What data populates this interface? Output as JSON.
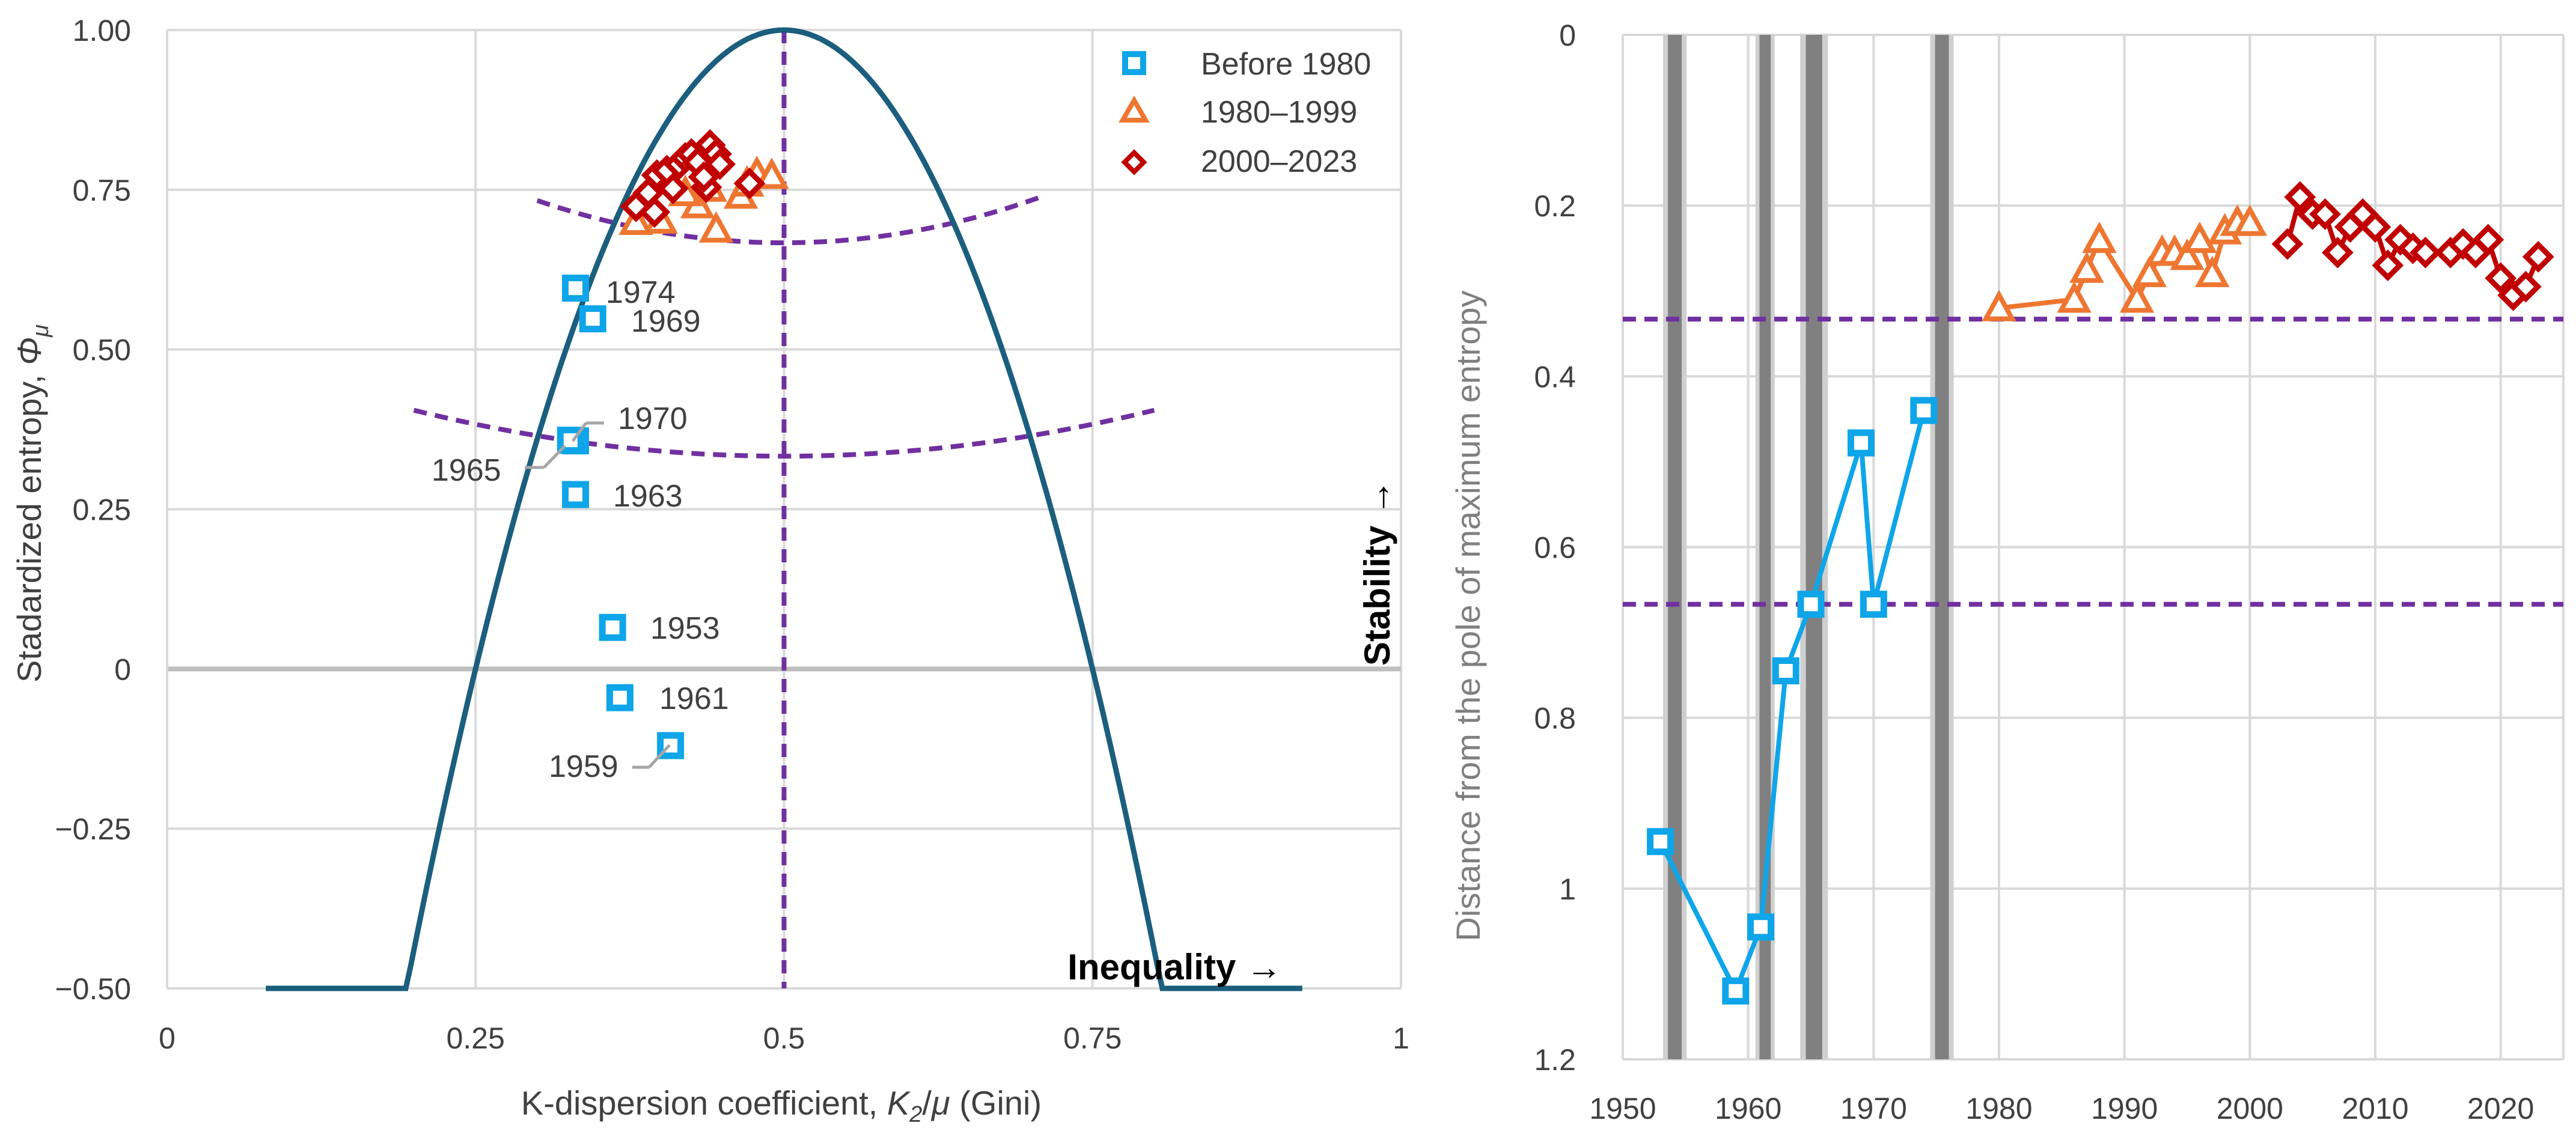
{
  "colors": {
    "before_1980": "#0EA5E9",
    "y1980_1999": "#EE7631",
    "y2000_2023": "#C00000",
    "parabola": "#1B5E7E",
    "dashed": "#7030A0",
    "grid": "#D9D9D9",
    "zero_line": "#BFBFBF",
    "recession_band": "#808080"
  },
  "chart_data": [
    {
      "type": "scatter",
      "title": "",
      "xlabel": "K-dispersion coefficient, K₂/μ (Gini)",
      "xlabel_parts": {
        "pre": "K-dispersion coefficient, ",
        "k": "K",
        "sub": "2",
        "mid": "/",
        "mu": "μ",
        "post": " (Gini)"
      },
      "ylabel": "Stadardized entropy, Φμ",
      "ylabel_parts": {
        "pre": "Stadardized entropy, ",
        "phi": "Φ",
        "sub": "μ"
      },
      "xlim": [
        0,
        1
      ],
      "ylim": [
        -0.5,
        1.0
      ],
      "xticks": [
        0,
        0.25,
        0.5,
        0.75,
        1
      ],
      "xtick_labels": [
        "0",
        "0.25",
        "0.5",
        "0.75",
        "1"
      ],
      "yticks": [
        -0.5,
        -0.25,
        0,
        0.25,
        0.5,
        0.75,
        1.0
      ],
      "ytick_labels": [
        "−0.50",
        "−0.25",
        "0",
        "0.25",
        "0.50",
        "0.75",
        "1.00"
      ],
      "grid": true,
      "legend_position": "top-right",
      "legend": [
        "Before 1980",
        "1980–1999",
        "2000–2023"
      ],
      "curve": {
        "type": "parabola",
        "formula": "1 - 16*(x-0.5)^2",
        "x_range": [
          0.08,
          0.92
        ]
      },
      "vertical_dashed_x": 0.5,
      "dashed_arcs": [
        {
          "x_range": [
            0.3,
            0.71
          ],
          "y_center": 0.667,
          "y_ends": [
            0.74,
            0.74
          ]
        },
        {
          "x_range": [
            0.2,
            0.8
          ],
          "y_center": 0.333,
          "y_ends": [
            0.405,
            0.405
          ]
        }
      ],
      "series": [
        {
          "name": "Before 1980",
          "marker": "square",
          "points": [
            {
              "x": 0.331,
              "y": 0.596,
              "label": "1974"
            },
            {
              "x": 0.345,
              "y": 0.548,
              "label": "1969"
            },
            {
              "x": 0.331,
              "y": 0.357,
              "label": "1970"
            },
            {
              "x": 0.327,
              "y": 0.358,
              "label": "1965"
            },
            {
              "x": 0.331,
              "y": 0.273,
              "label": "1963"
            },
            {
              "x": 0.361,
              "y": 0.065,
              "label": "1953"
            },
            {
              "x": 0.367,
              "y": -0.045,
              "label": "1961"
            },
            {
              "x": 0.408,
              "y": -0.12,
              "label": "1959"
            }
          ]
        },
        {
          "name": "1980–1999",
          "marker": "triangle",
          "points": [
            {
              "x": 0.38,
              "y": 0.7
            },
            {
              "x": 0.4,
              "y": 0.702
            },
            {
              "x": 0.43,
              "y": 0.726
            },
            {
              "x": 0.445,
              "y": 0.688
            },
            {
              "x": 0.465,
              "y": 0.741
            },
            {
              "x": 0.47,
              "y": 0.76
            },
            {
              "x": 0.478,
              "y": 0.775
            },
            {
              "x": 0.49,
              "y": 0.772
            },
            {
              "x": 0.42,
              "y": 0.745
            },
            {
              "x": 0.44,
              "y": 0.752
            }
          ]
        },
        {
          "name": "2000–2023",
          "marker": "diamond",
          "points": [
            {
              "x": 0.38,
              "y": 0.724
            },
            {
              "x": 0.39,
              "y": 0.745
            },
            {
              "x": 0.395,
              "y": 0.715
            },
            {
              "x": 0.397,
              "y": 0.773
            },
            {
              "x": 0.405,
              "y": 0.78
            },
            {
              "x": 0.41,
              "y": 0.752
            },
            {
              "x": 0.415,
              "y": 0.79
            },
            {
              "x": 0.42,
              "y": 0.8
            },
            {
              "x": 0.425,
              "y": 0.806
            },
            {
              "x": 0.43,
              "y": 0.793
            },
            {
              "x": 0.437,
              "y": 0.754
            },
            {
              "x": 0.44,
              "y": 0.82
            },
            {
              "x": 0.445,
              "y": 0.806
            },
            {
              "x": 0.448,
              "y": 0.79
            },
            {
              "x": 0.472,
              "y": 0.76
            },
            {
              "x": 0.435,
              "y": 0.77
            }
          ]
        }
      ],
      "annotations": [
        "Stability →",
        "Inequality →"
      ]
    },
    {
      "type": "line",
      "title": "",
      "xlabel": "",
      "ylabel": "Distance from the pole of maximum entropy",
      "xlim": [
        1950,
        2025
      ],
      "ylim": [
        0,
        1.2
      ],
      "y_inverted": true,
      "xticks": [
        1950,
        1960,
        1970,
        1980,
        1990,
        2000,
        2010,
        2020
      ],
      "xtick_labels": [
        "1950",
        "1960",
        "1970",
        "1980",
        "1990",
        "2000",
        "2010",
        "2020"
      ],
      "yticks": [
        0,
        0.2,
        0.4,
        0.6,
        0.8,
        1.0,
        1.2
      ],
      "ytick_labels": [
        "0",
        "0.2",
        "0.4",
        "0.6",
        "0.8",
        "1",
        "1.2"
      ],
      "grid": true,
      "horizontal_dashed_y": [
        0.333,
        0.667
      ],
      "recession_bands": [
        {
          "start": 1953.6,
          "end": 1954.7
        },
        {
          "start": 1960.9,
          "end": 1961.8
        },
        {
          "start": 1964.6,
          "end": 1965.9
        },
        {
          "start": 1974.9,
          "end": 1976.0
        }
      ],
      "series": [
        {
          "name": "Before 1980",
          "marker": "square",
          "points": [
            {
              "x": 1953,
              "y": 0.945
            },
            {
              "x": 1959,
              "y": 1.12
            },
            {
              "x": 1961,
              "y": 1.045
            },
            {
              "x": 1963,
              "y": 0.745
            },
            {
              "x": 1965,
              "y": 0.667
            },
            {
              "x": 1969,
              "y": 0.478
            },
            {
              "x": 1970,
              "y": 0.667
            },
            {
              "x": 1974,
              "y": 0.44
            }
          ]
        },
        {
          "name": "1980–1999",
          "marker": "triangle",
          "points": [
            {
              "x": 1980,
              "y": 0.32
            },
            {
              "x": 1986,
              "y": 0.31
            },
            {
              "x": 1987,
              "y": 0.275
            },
            {
              "x": 1988,
              "y": 0.24
            },
            {
              "x": 1991,
              "y": 0.31
            },
            {
              "x": 1992,
              "y": 0.28
            },
            {
              "x": 1993,
              "y": 0.255
            },
            {
              "x": 1994,
              "y": 0.255
            },
            {
              "x": 1995,
              "y": 0.26
            },
            {
              "x": 1996,
              "y": 0.24
            },
            {
              "x": 1997,
              "y": 0.28
            },
            {
              "x": 1998,
              "y": 0.23
            },
            {
              "x": 1999,
              "y": 0.22
            },
            {
              "x": 2000,
              "y": 0.22
            }
          ]
        },
        {
          "name": "2000–2023",
          "marker": "diamond",
          "points": [
            {
              "x": 2003,
              "y": 0.245
            },
            {
              "x": 2004,
              "y": 0.19
            },
            {
              "x": 2005,
              "y": 0.21
            },
            {
              "x": 2006,
              "y": 0.21
            },
            {
              "x": 2007,
              "y": 0.255
            },
            {
              "x": 2008,
              "y": 0.225
            },
            {
              "x": 2009,
              "y": 0.21
            },
            {
              "x": 2010,
              "y": 0.225
            },
            {
              "x": 2011,
              "y": 0.27
            },
            {
              "x": 2012,
              "y": 0.24
            },
            {
              "x": 2013,
              "y": 0.25
            },
            {
              "x": 2014,
              "y": 0.255
            },
            {
              "x": 2016,
              "y": 0.255
            },
            {
              "x": 2017,
              "y": 0.245
            },
            {
              "x": 2018,
              "y": 0.255
            },
            {
              "x": 2019,
              "y": 0.24
            },
            {
              "x": 2020,
              "y": 0.285
            },
            {
              "x": 2021,
              "y": 0.305
            },
            {
              "x": 2022,
              "y": 0.295
            },
            {
              "x": 2023,
              "y": 0.26
            }
          ]
        }
      ]
    }
  ]
}
